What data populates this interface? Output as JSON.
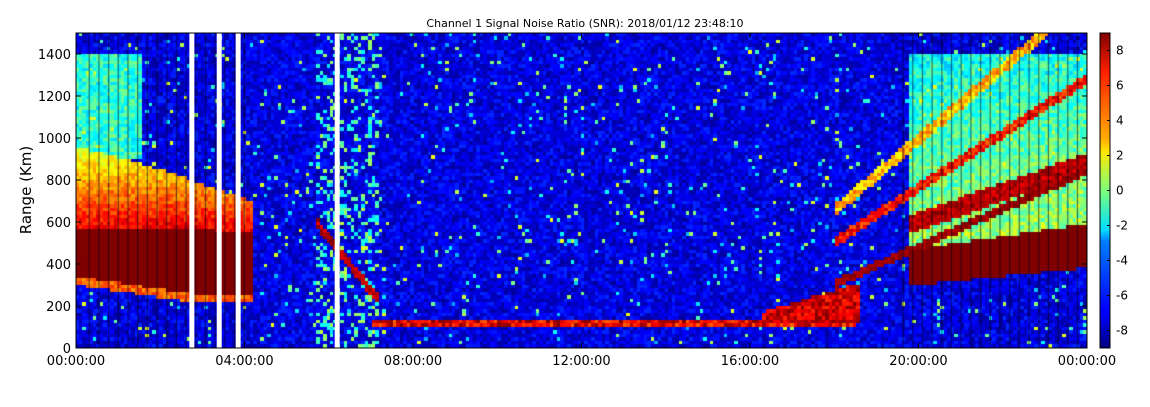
{
  "chart_data": {
    "type": "heatmap",
    "title": "Channel 1 Signal Noise Ratio (SNR): 2018/01/12 23:48:10",
    "xlabel": "",
    "ylabel": "Range (Km)",
    "x_ticks": [
      "00:00:00",
      "04:00:00",
      "08:00:00",
      "12:00:00",
      "16:00:00",
      "20:00:00",
      "00:00:00"
    ],
    "x_range_hours": [
      0,
      24
    ],
    "y_ticks": [
      0,
      200,
      400,
      600,
      800,
      1000,
      1200,
      1400
    ],
    "ylim": [
      0,
      1500
    ],
    "colorbar": {
      "colormap": "jet",
      "range": [
        -9,
        9
      ],
      "ticks": [
        8,
        6,
        4,
        2,
        0,
        -2,
        -4,
        -6,
        -8
      ]
    },
    "gap_hours": [
      2.75,
      3.4,
      3.85,
      6.2
    ],
    "features": [
      {
        "description": "strong SNR band (F-layer echo)",
        "hours": [
          0,
          4.0
        ],
        "range_km": [
          250,
          600
        ],
        "snr": 9
      },
      {
        "description": "strong SNR band (F-layer echo)",
        "hours": [
          20,
          24
        ],
        "range_km": [
          300,
          650
        ],
        "snr": 9
      },
      {
        "description": "E-layer echo line",
        "hours": [
          7.0,
          18.5
        ],
        "range_km": [
          100,
          140
        ],
        "snr": 7
      },
      {
        "description": "rising trace",
        "hours": [
          18.0,
          24
        ],
        "range_km": [
          250,
          1400
        ],
        "snr": 5
      }
    ]
  }
}
